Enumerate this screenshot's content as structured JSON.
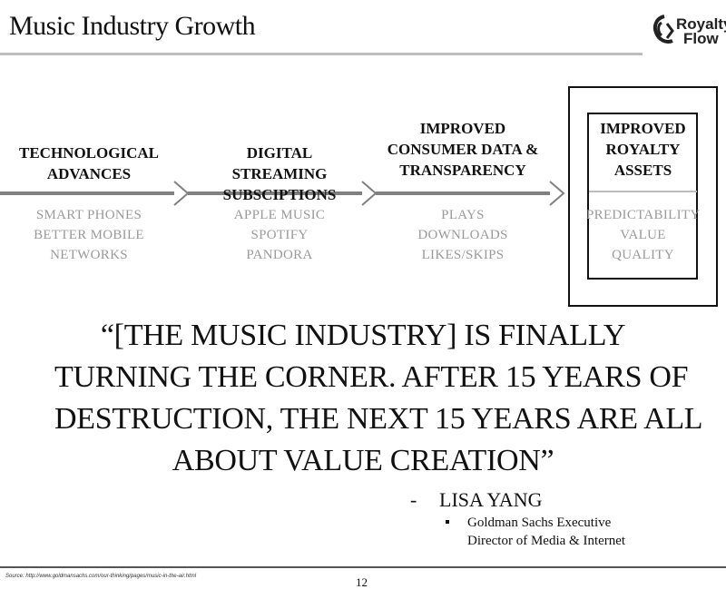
{
  "header": {
    "title": "Music Industry Growth",
    "logo": {
      "line1": "Royalty",
      "line2": "Flow",
      "icon": "royalty-flow-logo-icon"
    }
  },
  "stages": [
    {
      "heading": [
        "TECHNOLOGICAL",
        "ADVANCES"
      ],
      "items": [
        "SMART PHONES",
        "BETTER MOBILE",
        "NETWORKS"
      ]
    },
    {
      "heading": [
        "DIGITAL STREAMING",
        "SUBSCIPTIONS"
      ],
      "items": [
        "APPLE MUSIC",
        "SPOTIFY",
        "PANDORA"
      ]
    },
    {
      "heading": [
        "IMPROVED",
        "CONSUMER DATA &",
        "TRANSPARENCY"
      ],
      "items": [
        "PLAYS",
        "DOWNLOADS",
        "LIKES/SKIPS"
      ]
    },
    {
      "heading": [
        "IMPROVED",
        "ROYALTY",
        "ASSETS"
      ],
      "items": [
        "PREDICTABILITY",
        "VALUE",
        "QUALITY"
      ]
    }
  ],
  "quote": {
    "lines": [
      "“[THE MUSIC INDUSTRY] IS FINALLY",
      "TURNING THE CORNER. AFTER 15 YEARS OF",
      "DESTRUCTION, THE NEXT 15 YEARS ARE ALL",
      "ABOUT VALUE CREATION”"
    ],
    "dash": "-",
    "author": "LISA YANG",
    "role_lines": [
      "Goldman Sachs Executive",
      "Director of Media & Internet"
    ]
  },
  "footer": {
    "source": "Source: http://www.goldmansachs.com/our-thinking/pages/music-in-the-air.html",
    "page_number": "12"
  },
  "colors": {
    "text": "#111111",
    "muted": "#9a9a9a",
    "rule": "#bdbdbd",
    "arrow": "#808080"
  }
}
